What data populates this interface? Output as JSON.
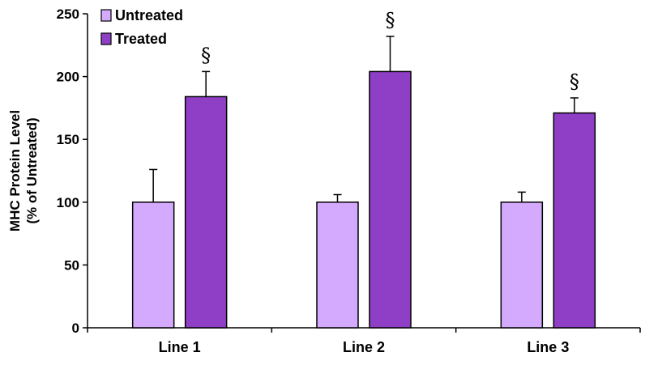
{
  "chart_data": {
    "type": "bar",
    "categories": [
      "Line 1",
      "Line 2",
      "Line 3"
    ],
    "ylabel_line1": "MHC Protein Level",
    "ylabel_line2": "(% of Untreated)",
    "ylim": [
      0,
      250
    ],
    "yticks": [
      0,
      50,
      100,
      150,
      200,
      250
    ],
    "grid": false,
    "legend_position": "top-left",
    "series": [
      {
        "name": "Untreated",
        "color": "#d4aaff",
        "values": [
          100,
          100,
          100
        ],
        "errors": [
          26,
          6,
          8
        ]
      },
      {
        "name": "Treated",
        "color": "#8e3fc6",
        "values": [
          184,
          204,
          171
        ],
        "errors": [
          20,
          28,
          12
        ]
      }
    ],
    "annotations": [
      {
        "series": "Treated",
        "category": "Line 1",
        "text": "§"
      },
      {
        "series": "Treated",
        "category": "Line 2",
        "text": "§"
      },
      {
        "series": "Treated",
        "category": "Line 3",
        "text": "§"
      }
    ]
  }
}
